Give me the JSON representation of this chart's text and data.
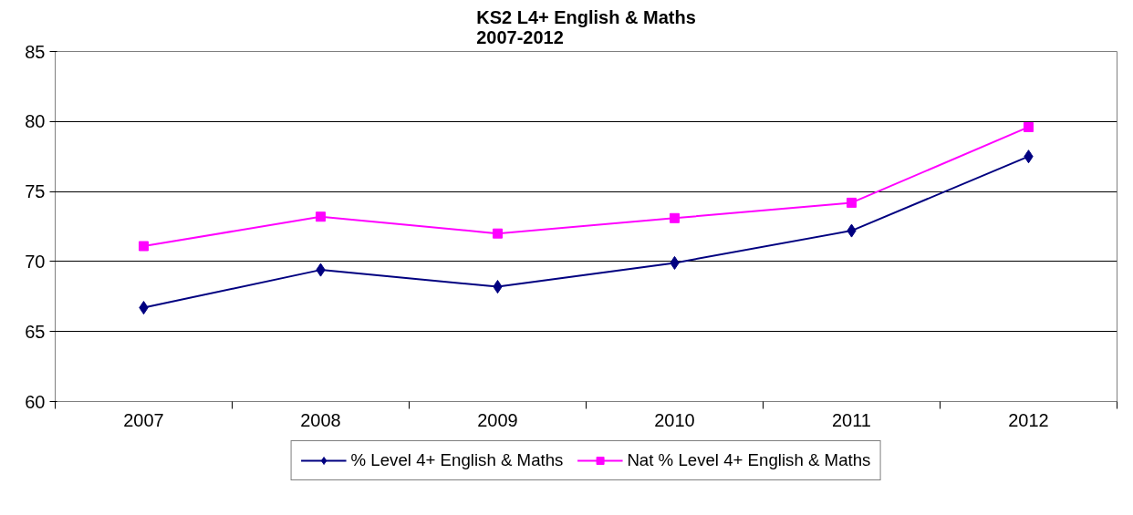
{
  "chart_data": {
    "type": "line",
    "title": "KS2 L4+ English & Maths\n2007-2012",
    "categories": [
      "2007",
      "2008",
      "2009",
      "2010",
      "2011",
      "2012"
    ],
    "series": [
      {
        "name": "% Level 4+ English & Maths",
        "color": "#000080",
        "marker": "diamond",
        "values": [
          66.7,
          69.4,
          68.2,
          69.9,
          72.2,
          77.5
        ]
      },
      {
        "name": "Nat % Level 4+ English & Maths",
        "color": "#ff00ff",
        "marker": "square",
        "values": [
          71.1,
          73.2,
          72.0,
          73.1,
          74.2,
          79.6
        ]
      }
    ],
    "ylim": [
      60,
      85
    ],
    "yticks": [
      60,
      65,
      70,
      75,
      80,
      85
    ],
    "grid": "y",
    "legend": "bottom",
    "line_style": "solid"
  }
}
